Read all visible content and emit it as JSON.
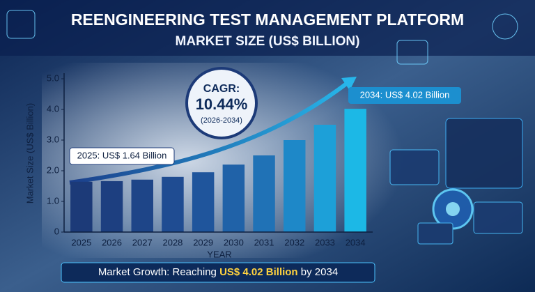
{
  "chart_data": {
    "type": "bar",
    "title": "REENGINEERING TEST MANAGEMENT PLATFORM",
    "subtitle": "MARKET SIZE (US$ BILLION)",
    "x_label": "YEAR",
    "y_label": "Market Size (US$ Billion)",
    "categories": [
      "2025",
      "2026",
      "2027",
      "2028",
      "2029",
      "2030",
      "2031",
      "2032",
      "2033",
      "2034"
    ],
    "values": [
      1.64,
      1.66,
      1.71,
      1.8,
      1.95,
      2.2,
      2.5,
      3.0,
      3.5,
      4.02
    ],
    "colors": [
      "#1c3a78",
      "#1d3f80",
      "#1e4588",
      "#1f4c92",
      "#1f559c",
      "#2062a8",
      "#2072b6",
      "#1e88c8",
      "#1da0d8",
      "#1cb8e6"
    ],
    "ylim": [
      0,
      5
    ],
    "yticks": [
      0,
      {
        "value": 1,
        "label": "1.0"
      },
      {
        "value": 2,
        "label": "2.0"
      },
      {
        "value": 3,
        "label": "3.0"
      },
      {
        "value": 4,
        "label": "4.0"
      },
      {
        "value": 5,
        "label": "5.0"
      }
    ],
    "annotations": {
      "cagr_label": "CAGR:",
      "cagr_value": "10.44%",
      "cagr_period": "(2026-2034)",
      "start_callout": "2025: US$ 1.64 Billion",
      "end_callout": "2034: US$ 4.02 Billion",
      "footer_prefix": "Market Growth: Reaching",
      "footer_highlight": "US$ 4.02 Billion",
      "footer_suffix": "by 2034"
    }
  }
}
